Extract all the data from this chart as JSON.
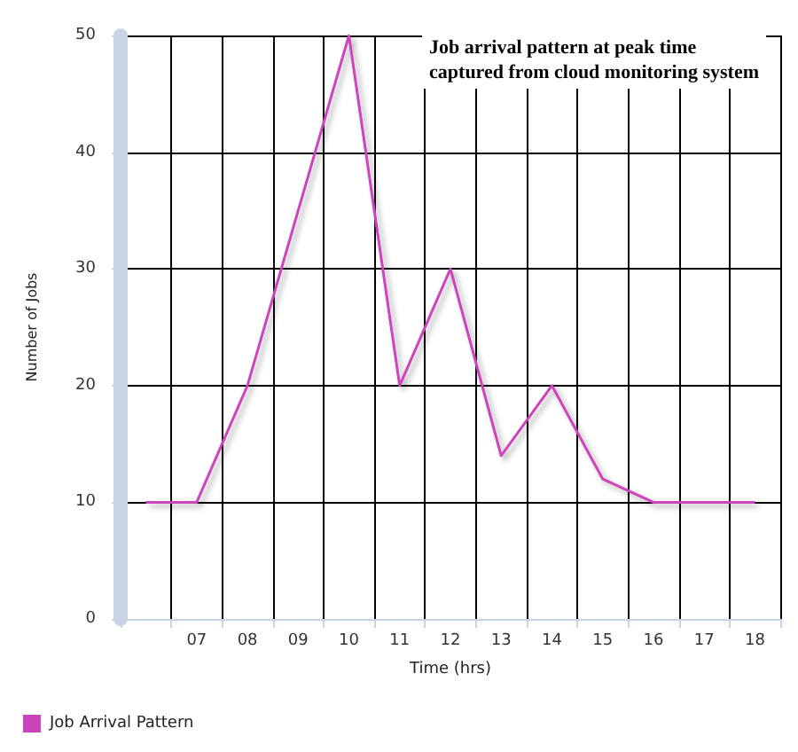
{
  "chart_data": {
    "type": "line",
    "title": "Job arrival pattern at peak time\ncaptured from cloud monitoring system",
    "xlabel": "Time (hrs)",
    "ylabel": "Number of Jobs",
    "categories": [
      null,
      "07",
      "08",
      "09",
      "10",
      "11",
      "12",
      "13",
      "14",
      "15",
      "16",
      "17",
      "18"
    ],
    "series": [
      {
        "name": "Job Arrival Pattern",
        "color": "#cc44bb",
        "values": [
          10,
          10,
          20,
          35,
          50,
          20,
          30,
          14,
          20,
          12,
          10,
          10,
          10
        ]
      }
    ],
    "ylim": [
      0,
      50
    ],
    "yticks": [
      0,
      10,
      20,
      30,
      40,
      50
    ],
    "grid": true,
    "legend": "bottom left",
    "marker": "none",
    "line_style": "solid"
  }
}
